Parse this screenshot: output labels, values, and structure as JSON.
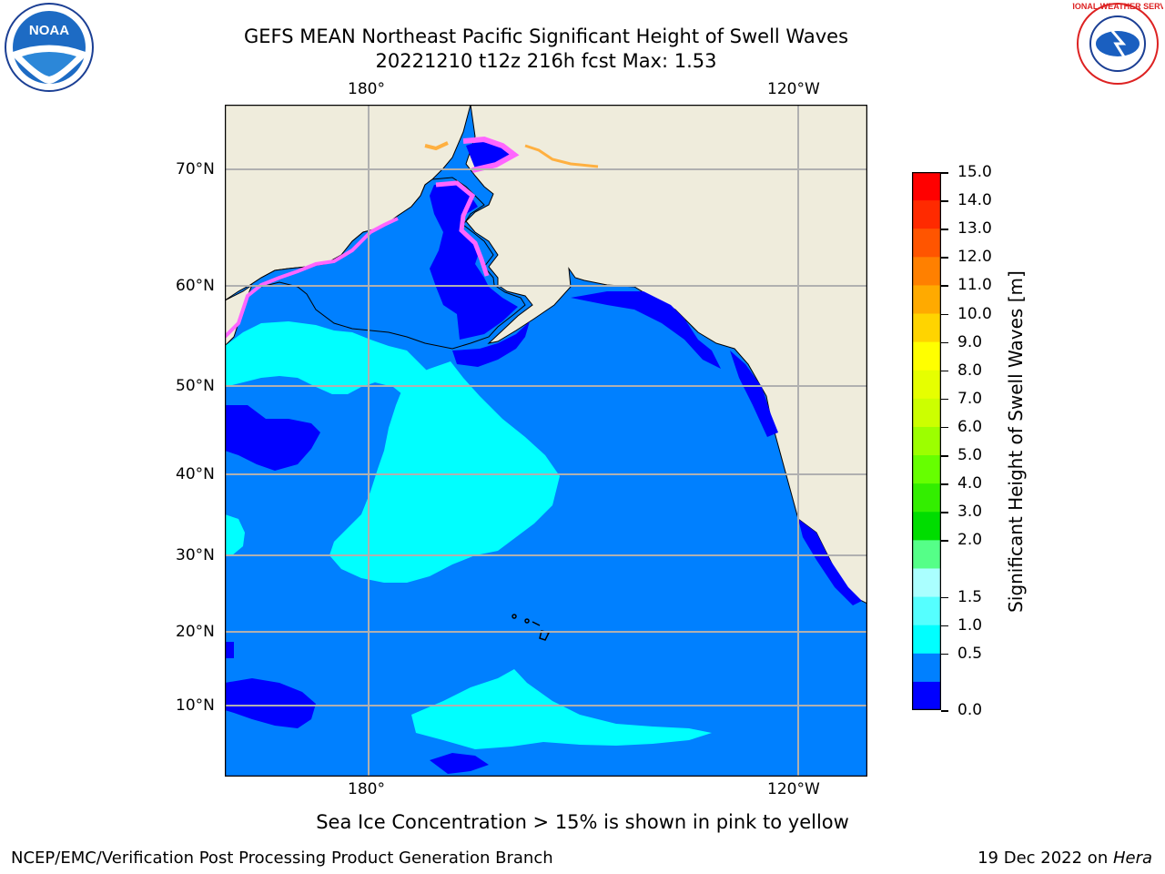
{
  "header": {
    "title_line1": "GEFS MEAN Northeast Pacific Significant Height of Swell Waves",
    "title_line2": "20221210 t12z 216h fcst   Max: 1.53"
  },
  "logos": {
    "left": "NOAA",
    "right": "NATIONAL WEATHER SERVICE"
  },
  "map": {
    "lon_ticks": [
      "180°",
      "120°W"
    ],
    "lat_ticks": [
      "70°N",
      "60°N",
      "50°N",
      "40°N",
      "30°N",
      "20°N",
      "10°N"
    ],
    "colors": {
      "land": "#efecdc",
      "sea_0_0.5": "#0000ff",
      "sea_0.5_1.0": "#0080ff",
      "sea_1.0_1.5": "#00ffff",
      "ice_low": "#ff66ff",
      "ice_high": "#ffb040",
      "grid": "#b0b0b0"
    }
  },
  "colorbar": {
    "label": "Significant Height of Swell Waves [m]",
    "ticks": [
      "15.0",
      "14.0",
      "13.0",
      "12.0",
      "11.0",
      "10.0",
      "9.0",
      "8.0",
      "7.0",
      "6.0",
      "5.0",
      "4.0",
      "3.0",
      "2.0",
      "1.5",
      "1.0",
      "0.5",
      "0.0"
    ],
    "colors_top_to_bottom": [
      "#ff0000",
      "#ff2a00",
      "#ff5500",
      "#ff8000",
      "#ffaa00",
      "#ffd400",
      "#ffff00",
      "#e6ff00",
      "#ccff00",
      "#9cff00",
      "#66ff00",
      "#33ee00",
      "#00dd00",
      "#55ff88",
      "#aaffff",
      "#55ffff",
      "#00ffff",
      "#0080ff",
      "#0000ff"
    ]
  },
  "footer": {
    "note": "Sea Ice Concentration > 15% is shown in pink to yellow",
    "left": "NCEP/EMC/Verification Post Processing Product Generation Branch",
    "right_date": "19 Dec 2022 on ",
    "right_host": "Hera"
  }
}
